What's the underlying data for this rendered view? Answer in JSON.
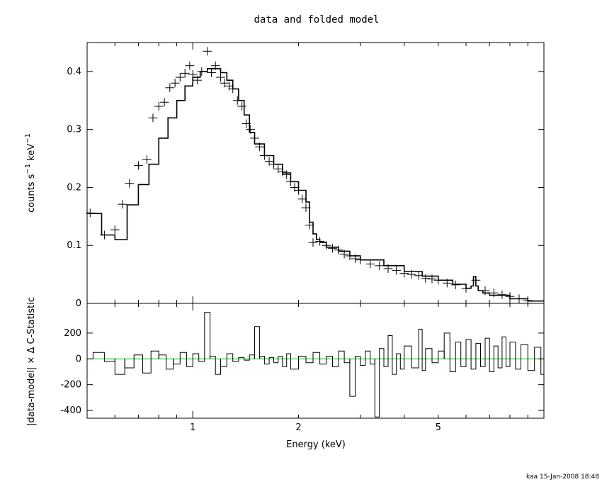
{
  "title": "data and folded model",
  "footer": "kaa 15-Jan-2008 18:48",
  "colors": {
    "ink": "#000000",
    "zero_line": "#00cc00",
    "background": "#ffffff"
  },
  "chart_data": [
    {
      "type": "line",
      "panel": "top",
      "xlabel": "Energy (keV)",
      "ylabel": "counts s⁻¹ keV⁻¹",
      "xscale": "log",
      "xlim": [
        0.5,
        10
      ],
      "ylim": [
        0,
        0.45
      ],
      "yticks": [
        0,
        0.1,
        0.2,
        0.3,
        0.4
      ],
      "yticklabels": [
        "0",
        "0.1",
        "0.2",
        "0.3",
        "0.4"
      ],
      "grid": false,
      "series": [
        {
          "style": "histogram-step",
          "x": [
            0.5,
            0.55,
            0.6,
            0.65,
            0.7,
            0.75,
            0.8,
            0.85,
            0.9,
            0.95,
            1.0,
            1.05,
            1.1,
            1.15,
            1.2,
            1.25,
            1.3,
            1.35,
            1.4,
            1.45,
            1.5,
            1.6,
            1.7,
            1.8,
            1.9,
            2.0,
            2.1,
            2.15,
            2.2,
            2.25,
            2.3,
            2.4,
            2.6,
            2.8,
            3.0,
            3.5,
            4.0,
            4.5,
            5.0,
            5.5,
            6.0,
            6.2,
            6.3,
            6.4,
            6.5,
            6.7,
            7.0,
            8.0,
            9.0,
            10.0
          ],
          "y": [
            0.155,
            0.118,
            0.11,
            0.17,
            0.205,
            0.24,
            0.285,
            0.32,
            0.35,
            0.375,
            0.39,
            0.4,
            0.405,
            0.405,
            0.398,
            0.385,
            0.37,
            0.35,
            0.325,
            0.295,
            0.275,
            0.255,
            0.24,
            0.225,
            0.21,
            0.195,
            0.175,
            0.14,
            0.12,
            0.11,
            0.105,
            0.097,
            0.09,
            0.082,
            0.075,
            0.065,
            0.055,
            0.047,
            0.04,
            0.033,
            0.026,
            0.03,
            0.046,
            0.03,
            0.022,
            0.018,
            0.014,
            0.008,
            0.004,
            0.002
          ]
        },
        {
          "style": "error-crosses",
          "x": [
            0.51,
            0.56,
            0.6,
            0.63,
            0.66,
            0.7,
            0.74,
            0.77,
            0.8,
            0.83,
            0.86,
            0.89,
            0.92,
            0.95,
            0.98,
            1.0,
            1.03,
            1.06,
            1.1,
            1.13,
            1.16,
            1.2,
            1.23,
            1.27,
            1.3,
            1.34,
            1.38,
            1.42,
            1.46,
            1.5,
            1.55,
            1.6,
            1.65,
            1.7,
            1.75,
            1.8,
            1.85,
            1.9,
            1.95,
            2.0,
            2.05,
            2.1,
            2.15,
            2.2,
            2.3,
            2.4,
            2.5,
            2.6,
            2.7,
            2.8,
            2.9,
            3.0,
            3.2,
            3.4,
            3.6,
            3.8,
            4.0,
            4.2,
            4.4,
            4.6,
            4.8,
            5.0,
            5.3,
            5.6,
            6.0,
            6.4,
            6.8,
            7.2,
            7.6,
            8.0,
            8.5,
            9.0
          ],
          "y": [
            0.156,
            0.118,
            0.127,
            0.171,
            0.207,
            0.238,
            0.248,
            0.32,
            0.34,
            0.347,
            0.372,
            0.38,
            0.39,
            0.397,
            0.41,
            0.395,
            0.385,
            0.4,
            0.435,
            0.398,
            0.41,
            0.39,
            0.38,
            0.375,
            0.37,
            0.35,
            0.34,
            0.31,
            0.3,
            0.285,
            0.27,
            0.255,
            0.245,
            0.24,
            0.232,
            0.227,
            0.222,
            0.21,
            0.2,
            0.195,
            0.18,
            0.165,
            0.135,
            0.105,
            0.107,
            0.1,
            0.095,
            0.092,
            0.085,
            0.082,
            0.077,
            0.075,
            0.068,
            0.065,
            0.06,
            0.057,
            0.052,
            0.05,
            0.048,
            0.043,
            0.042,
            0.04,
            0.035,
            0.032,
            0.026,
            0.04,
            0.022,
            0.018,
            0.015,
            0.012,
            0.008,
            0.005
          ]
        }
      ]
    },
    {
      "type": "bar",
      "panel": "bottom",
      "xlabel": "Energy (keV)",
      "ylabel": "|data-model| × Δ C-Statistic",
      "xscale": "log",
      "xlim": [
        0.5,
        10
      ],
      "ylim": [
        -460,
        430
      ],
      "yticks": [
        -400,
        -200,
        0,
        200
      ],
      "yticklabels": [
        "-400",
        "-200",
        "0",
        "200"
      ],
      "xticks": [
        1,
        2,
        5
      ],
      "xticklabels": [
        "1",
        "2",
        "5"
      ],
      "zero_line": true,
      "x": [
        0.52,
        0.56,
        0.6,
        0.64,
        0.68,
        0.72,
        0.76,
        0.8,
        0.84,
        0.88,
        0.92,
        0.96,
        1.0,
        1.04,
        1.08,
        1.12,
        1.16,
        1.2,
        1.25,
        1.3,
        1.35,
        1.4,
        1.45,
        1.5,
        1.55,
        1.6,
        1.65,
        1.7,
        1.75,
        1.8,
        1.85,
        1.9,
        2.0,
        2.1,
        2.2,
        2.3,
        2.4,
        2.5,
        2.6,
        2.7,
        2.8,
        2.9,
        3.0,
        3.1,
        3.2,
        3.3,
        3.4,
        3.5,
        3.6,
        3.7,
        3.8,
        3.9,
        4.0,
        4.2,
        4.4,
        4.5,
        4.6,
        4.8,
        5.0,
        5.2,
        5.4,
        5.6,
        5.8,
        6.0,
        6.2,
        6.4,
        6.6,
        6.8,
        7.0,
        7.2,
        7.4,
        7.6,
        7.8,
        8.0,
        8.3,
        8.6,
        9.0,
        9.4,
        9.8
      ],
      "values": [
        50,
        -20,
        -120,
        -70,
        30,
        -110,
        60,
        30,
        -80,
        -40,
        50,
        -60,
        40,
        -20,
        360,
        20,
        -120,
        -60,
        40,
        -20,
        10,
        -10,
        30,
        250,
        20,
        -40,
        10,
        -30,
        20,
        -60,
        40,
        -80,
        20,
        -30,
        50,
        -40,
        20,
        -60,
        60,
        -30,
        -290,
        20,
        -50,
        60,
        -40,
        -450,
        80,
        -60,
        180,
        -120,
        40,
        -80,
        100,
        -70,
        230,
        -90,
        80,
        -30,
        60,
        200,
        -100,
        130,
        -60,
        150,
        -80,
        120,
        -60,
        160,
        -100,
        100,
        -70,
        170,
        -60,
        130,
        -80,
        110,
        -90,
        90,
        -120
      ]
    }
  ]
}
